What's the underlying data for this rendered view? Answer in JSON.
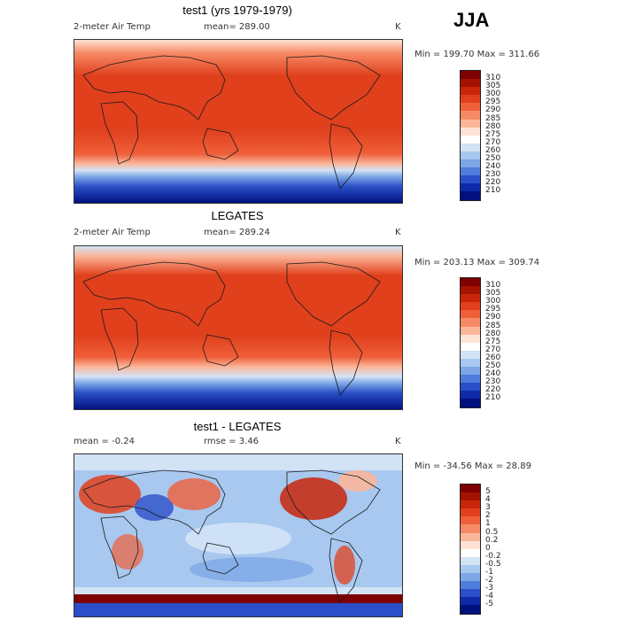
{
  "season": "JJA",
  "panels": [
    {
      "title": "test1 (yrs 1979-1979)",
      "left_label": "2-meter Air Temp",
      "mid_label": "mean= 289.00",
      "unit": "K",
      "minmax": "Min = 199.70 Max = 311.66",
      "colorbar": {
        "labels": [
          "310",
          "305",
          "300",
          "295",
          "290",
          "285",
          "280",
          "275",
          "270",
          "260",
          "250",
          "240",
          "230",
          "220",
          "210"
        ],
        "colors": [
          "#7f0000",
          "#a41200",
          "#c8260a",
          "#e0401c",
          "#ef5f3a",
          "#f78a66",
          "#fbb69a",
          "#fde3d6",
          "#ffffff",
          "#d3e3f6",
          "#a8c8ef",
          "#7da7e6",
          "#4f7ddb",
          "#2a4fc8",
          "#0e2aa8",
          "#00117e"
        ]
      }
    },
    {
      "title": "LEGATES",
      "left_label": "2-meter Air Temp",
      "mid_label": "mean= 289.24",
      "unit": "K",
      "minmax": "Min = 203.13 Max = 309.74",
      "colorbar": {
        "labels": [
          "310",
          "305",
          "300",
          "295",
          "290",
          "285",
          "280",
          "275",
          "270",
          "260",
          "250",
          "240",
          "230",
          "220",
          "210"
        ],
        "colors": [
          "#7f0000",
          "#a41200",
          "#c8260a",
          "#e0401c",
          "#ef5f3a",
          "#f78a66",
          "#fbb69a",
          "#fde3d6",
          "#ffffff",
          "#d3e3f6",
          "#a8c8ef",
          "#7da7e6",
          "#4f7ddb",
          "#2a4fc8",
          "#0e2aa8",
          "#00117e"
        ]
      }
    },
    {
      "title": "test1 - LEGATES",
      "left_label": "mean =  -0.24",
      "mid_label": "rmse =   3.46",
      "unit": "K",
      "minmax": "Min = -34.56 Max =  28.89",
      "colorbar": {
        "labels": [
          "5",
          "4",
          "3",
          "2",
          "1",
          "0.5",
          "0.2",
          "0",
          "-0.2",
          "-0.5",
          "-1",
          "-2",
          "-3",
          "-4",
          "-5"
        ],
        "colors": [
          "#7f0000",
          "#a41200",
          "#c8260a",
          "#e0401c",
          "#ef5f3a",
          "#f78a66",
          "#fbb69a",
          "#fde3d6",
          "#ffffff",
          "#d3e3f6",
          "#a8c8ef",
          "#7da7e6",
          "#4f7ddb",
          "#2a4fc8",
          "#0e2aa8",
          "#00117e"
        ]
      }
    }
  ]
}
